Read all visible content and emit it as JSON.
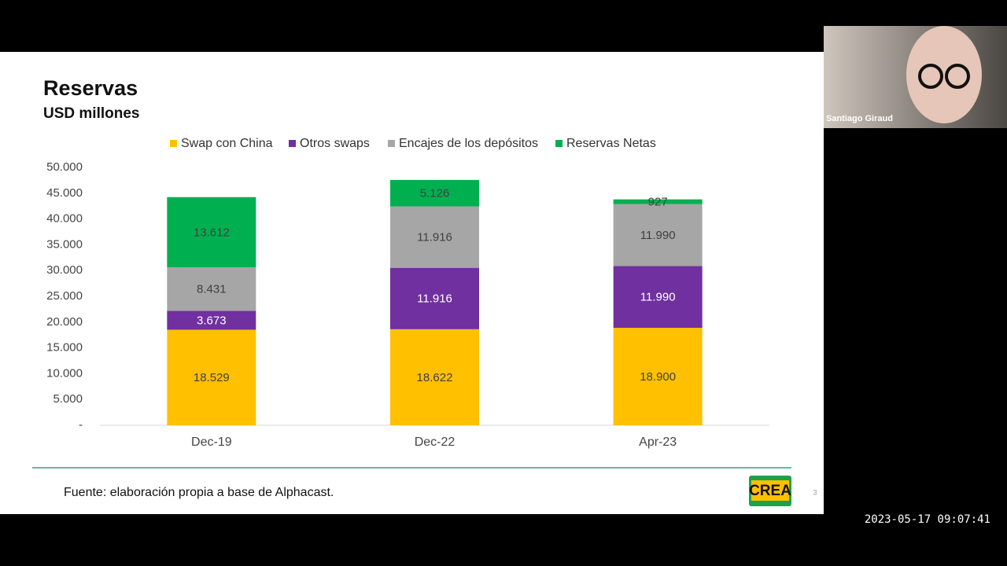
{
  "chart_data": {
    "type": "stacked-bar",
    "title": "Reservas",
    "subtitle": "USD millones",
    "categories": [
      "Dec-19",
      "Dec-22",
      "Apr-23"
    ],
    "series": [
      {
        "name": "Swap con China",
        "color": "#FFC000",
        "values": [
          18529,
          18622,
          18900
        ],
        "value_labels": [
          "18.529",
          "18.622",
          "18.900"
        ]
      },
      {
        "name": "Otros swaps",
        "color": "#7030A0",
        "values": [
          3673,
          11916,
          11990
        ],
        "value_labels": [
          "3.673",
          "11.916",
          "11.990"
        ]
      },
      {
        "name": "Encajes de los depósitos",
        "color": "#A6A6A6",
        "values": [
          8431,
          11916,
          11990
        ],
        "value_labels": [
          "8.431",
          "11.916",
          "11.990"
        ]
      },
      {
        "name": "Reservas Netas",
        "color": "#00B050",
        "values": [
          13612,
          5126,
          927
        ],
        "value_labels": [
          "13.612",
          "5.126",
          "927"
        ]
      }
    ],
    "ylim": [
      0,
      50000
    ],
    "yticks": [
      {
        "value": 0,
        "label": "-"
      },
      {
        "value": 5000,
        "label": "5.000"
      },
      {
        "value": 10000,
        "label": "10.000"
      },
      {
        "value": 15000,
        "label": "15.000"
      },
      {
        "value": 20000,
        "label": "20.000"
      },
      {
        "value": 25000,
        "label": "25.000"
      },
      {
        "value": 30000,
        "label": "30.000"
      },
      {
        "value": 35000,
        "label": "35.000"
      },
      {
        "value": 40000,
        "label": "40.000"
      },
      {
        "value": 45000,
        "label": "45.000"
      },
      {
        "value": 50000,
        "label": "50.000"
      }
    ],
    "legend": "top"
  },
  "footer": {
    "source": "Fuente: elaboración propia a base de Alphacast.",
    "logo": "CREA",
    "page_number": "3"
  },
  "video": {
    "participant": "Santiago Giraud",
    "timestamp": "2023-05-17 09:07:41"
  }
}
